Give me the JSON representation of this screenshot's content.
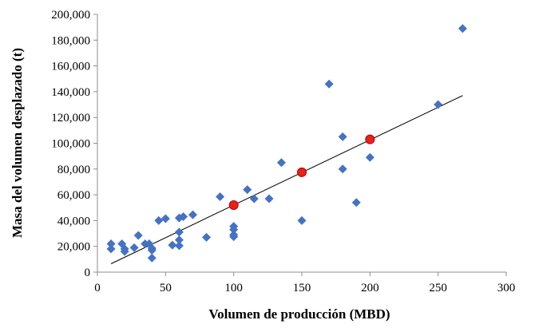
{
  "chart_data": {
    "type": "scatter",
    "title": "",
    "xlabel": "Volumen de producción (MBD)",
    "ylabel": "Masa del volumen desplazado (t)",
    "xlim": [
      0,
      300
    ],
    "ylim": [
      0,
      200000
    ],
    "x_ticks": [
      0,
      50,
      100,
      150,
      200,
      250,
      300
    ],
    "x_tick_labels": [
      "0",
      "50",
      "100",
      "150",
      "200",
      "250",
      "300"
    ],
    "y_ticks": [
      0,
      20000,
      40000,
      60000,
      80000,
      100000,
      120000,
      140000,
      160000,
      180000,
      200000
    ],
    "y_tick_labels": [
      "0",
      "20,000",
      "40,000",
      "60,000",
      "80,000",
      "100,000",
      "120,000",
      "140,000",
      "160,000",
      "180,000",
      "200,000"
    ],
    "grid": false,
    "legend": "none",
    "series": [
      {
        "marker": "diamond",
        "color": "#4472C4",
        "points": [
          [
            10,
            22000
          ],
          [
            10,
            18000
          ],
          [
            18,
            22000
          ],
          [
            20,
            18000
          ],
          [
            20,
            16000
          ],
          [
            27,
            19000
          ],
          [
            30,
            28500
          ],
          [
            35,
            22000
          ],
          [
            38,
            22000
          ],
          [
            40,
            18500
          ],
          [
            40,
            17000
          ],
          [
            40,
            11000
          ],
          [
            45,
            40000
          ],
          [
            50,
            41500
          ],
          [
            55,
            21000
          ],
          [
            60,
            20500
          ],
          [
            60,
            25000
          ],
          [
            60,
            31000
          ],
          [
            60,
            42000
          ],
          [
            63,
            43000
          ],
          [
            70,
            44500
          ],
          [
            80,
            27000
          ],
          [
            90,
            58500
          ],
          [
            100,
            27500
          ],
          [
            100,
            29000
          ],
          [
            100,
            33000
          ],
          [
            100,
            35500
          ],
          [
            110,
            64000
          ],
          [
            115,
            57000
          ],
          [
            126,
            57000
          ],
          [
            135,
            85000
          ],
          [
            150,
            40000
          ],
          [
            170,
            146000
          ],
          [
            180,
            105000
          ],
          [
            180,
            80000
          ],
          [
            190,
            54000
          ],
          [
            200,
            89000
          ],
          [
            250,
            130000
          ],
          [
            268,
            189000
          ]
        ]
      },
      {
        "marker": "circle",
        "color": "#E8211B",
        "points": [
          [
            100,
            52000
          ],
          [
            150,
            77500
          ],
          [
            200,
            103000
          ]
        ]
      }
    ],
    "trendline": {
      "color": "#000000",
      "points": [
        [
          10,
          6500
        ],
        [
          268,
          137000
        ]
      ]
    }
  }
}
